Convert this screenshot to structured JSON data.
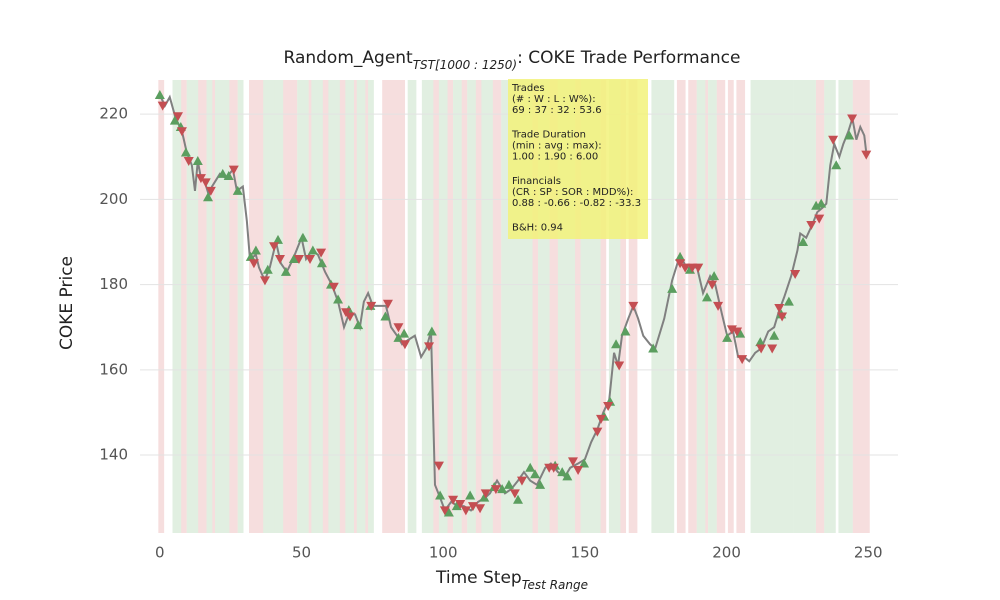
{
  "chart_data": {
    "type": "line",
    "title": {
      "main": "Random_Agent",
      "sub": "TST[1000 : 1250)",
      "rest": ": COKE Trade Performance"
    },
    "xlabel": {
      "main": "Time Step",
      "sub": "Test Range"
    },
    "ylabel": "COKE Price",
    "xlim": [
      -7,
      260.5
    ],
    "ylim": [
      121.7,
      229.9
    ],
    "xticks": [
      0,
      50,
      100,
      150,
      200,
      250
    ],
    "yticks": [
      140,
      160,
      180,
      200,
      220
    ],
    "grid": true,
    "spans": [
      {
        "color": "#f6dede",
        "ranges": [
          [
            0,
            1
          ],
          [
            8,
            9
          ],
          [
            14,
            16
          ],
          [
            18,
            19
          ],
          [
            24,
            27
          ],
          [
            32,
            37
          ],
          [
            40,
            41
          ],
          [
            43,
            48
          ],
          [
            52,
            54
          ],
          [
            57,
            60
          ],
          [
            63,
            66
          ],
          [
            68,
            70
          ],
          [
            72,
            74
          ],
          [
            79,
            86
          ],
          [
            96,
            98
          ],
          [
            101,
            103
          ],
          [
            106,
            108
          ],
          [
            111,
            113
          ],
          [
            117,
            120
          ],
          [
            131,
            133
          ],
          [
            137,
            140
          ],
          [
            146,
            148
          ],
          [
            155,
            157
          ],
          [
            162,
            164
          ],
          [
            166,
            168
          ],
          [
            183,
            185
          ],
          [
            187,
            189
          ],
          [
            192,
            193
          ],
          [
            197,
            199
          ],
          [
            201,
            202
          ],
          [
            204,
            206
          ],
          [
            232,
            234
          ],
          [
            245,
            250
          ]
        ]
      },
      {
        "color": "#e1efe1",
        "ranges": [
          [
            5,
            7
          ],
          [
            10,
            13
          ],
          [
            17,
            18
          ],
          [
            20,
            24
          ],
          [
            28,
            29
          ],
          [
            37,
            40
          ],
          [
            41,
            43
          ],
          [
            49,
            52
          ],
          [
            54,
            57
          ],
          [
            60,
            63
          ],
          [
            66,
            68
          ],
          [
            70,
            72
          ],
          [
            74,
            75
          ],
          [
            88,
            90
          ],
          [
            93,
            96
          ],
          [
            99,
            101
          ],
          [
            104,
            106
          ],
          [
            109,
            111
          ],
          [
            114,
            117
          ],
          [
            121,
            131
          ],
          [
            134,
            137
          ],
          [
            141,
            146
          ],
          [
            149,
            155
          ],
          [
            159,
            162
          ],
          [
            174,
            181
          ],
          [
            190,
            192
          ],
          [
            194,
            196
          ],
          [
            209,
            223
          ],
          [
            224,
            227
          ],
          [
            228,
            231
          ],
          [
            235,
            238
          ],
          [
            240,
            244
          ]
        ]
      }
    ],
    "series": [
      {
        "marker": "none",
        "color": "#808080",
        "x": [
          0,
          1.8,
          3.5,
          5.6,
          7.8,
          9.5,
          11.3,
          12.4,
          13.4,
          14.5,
          15.9,
          17.3,
          18.4,
          21.2,
          23.3,
          25.8,
          27.2,
          29.3,
          30.7,
          31.8,
          33.9,
          35,
          37,
          38.8,
          41,
          42.7,
          44.8,
          47,
          50,
          51.6,
          53.7,
          55.8,
          58.3,
          60.7,
          62.9,
          65,
          66.7,
          68.9,
          70.6,
          72,
          73.5,
          75.2,
          77.7,
          79.8,
          81.6,
          83.7,
          85.5,
          87.6,
          90,
          92.2,
          94,
          95.7,
          97.1,
          98.9,
          100.6,
          102.8,
          105.2,
          107.3,
          109.8,
          112.3,
          114.8,
          116.5,
          119,
          121.8,
          124,
          126.4,
          128.5,
          130.7,
          133.1,
          136,
          138,
          140.5,
          143,
          144.8,
          147.6,
          150,
          152.2,
          154.4,
          156.5,
          158.6,
          160.3,
          161.7,
          163.1,
          165.3,
          167.1,
          168.8,
          170.6,
          173,
          174.8,
          178,
          180.8,
          183.6,
          185.8,
          187.9,
          189.6,
          191.7,
          194.2,
          196,
          198.4,
          200.2,
          202.3,
          204.1,
          206.2,
          208,
          210.1,
          212.2,
          214.7,
          216.8,
          218.6,
          220.3,
          222.8,
          225,
          226,
          228.1,
          230.2,
          232,
          233.8,
          235.2,
          236.6,
          238,
          239.8,
          241.2,
          243,
          244.4,
          245.8,
          247.2,
          248.6,
          249.3
        ],
        "values": [
          224.5,
          222,
          224,
          219,
          216,
          211,
          208,
          202,
          209,
          205,
          204,
          201,
          203,
          206,
          205,
          207,
          202,
          203,
          195,
          186,
          187,
          184,
          181,
          184,
          190,
          185,
          183,
          186,
          191,
          186,
          188,
          187,
          183,
          180,
          176,
          170,
          173,
          173,
          170,
          176,
          178,
          175,
          175,
          175,
          170,
          168,
          166,
          167,
          168,
          163,
          165,
          169,
          133,
          130,
          127,
          129,
          128,
          128,
          127,
          129,
          130,
          131,
          134,
          131,
          132,
          134,
          136,
          134,
          133,
          137,
          138,
          136,
          135,
          137,
          138,
          139,
          143,
          146,
          150,
          153,
          164,
          161,
          168,
          172,
          175,
          172,
          168,
          166,
          165,
          172,
          181,
          187,
          184,
          184,
          184,
          178,
          182,
          180,
          173,
          168,
          169,
          163,
          163,
          162,
          164,
          165,
          169,
          170,
          174,
          177,
          182,
          188,
          192,
          191,
          194,
          197,
          198,
          199,
          208,
          213,
          210,
          213,
          216,
          219,
          214,
          217,
          215,
          211
        ]
      },
      {
        "marker": "triangle-up",
        "color": "#5b9e5f",
        "x": [
          0,
          5.3,
          7.4,
          9.2,
          13.4,
          17,
          22.2,
          24.3,
          27.5,
          32.1,
          33.9,
          38.1,
          41.7,
          44.5,
          47.3,
          50.5,
          54,
          57.2,
          60.4,
          62.9,
          66.7,
          70,
          74.3,
          79.6,
          84.2,
          86.2,
          96,
          98.9,
          102,
          104.8,
          109.5,
          114.5,
          118,
          120.8,
          123.2,
          126.4,
          130.7,
          132.4,
          134.2,
          139.5,
          142,
          143.8,
          149.7,
          156.8,
          158.9,
          161,
          164.3,
          174.1,
          180.8,
          183.6,
          187.1,
          193.1,
          195.6,
          200.2,
          204.8,
          211.9,
          216.8,
          219.3,
          222,
          227,
          231.6,
          233.4,
          238.7,
          243.3
        ],
        "values": [
          224.5,
          218.5,
          217,
          211,
          209,
          200.5,
          206,
          205.5,
          202,
          186.5,
          188,
          183.5,
          190.5,
          183,
          186,
          191,
          188,
          185,
          180,
          176.5,
          174,
          170.5,
          175,
          172.5,
          167.5,
          168.5,
          169,
          130.5,
          126.5,
          128,
          130.5,
          130,
          132.5,
          132,
          133,
          129.5,
          137,
          135.5,
          133,
          137.5,
          136,
          135,
          138,
          149,
          152.5,
          166,
          169,
          165,
          179,
          186.5,
          183.5,
          177,
          182,
          167.5,
          168.5,
          166.5,
          168,
          173,
          176,
          190,
          198.5,
          199,
          208,
          215
        ]
      },
      {
        "marker": "triangle-down",
        "color": "#c44e52",
        "x": [
          1,
          6.4,
          7.8,
          10.2,
          14.5,
          16.2,
          18,
          26.1,
          33.2,
          37.1,
          40.3,
          42.4,
          49.1,
          53,
          56.9,
          61.4,
          65.7,
          67.1,
          74.6,
          80.5,
          84.2,
          86.5,
          95,
          98.5,
          100.6,
          103.5,
          106,
          108,
          110.5,
          113,
          115,
          118.6,
          125.3,
          127.8,
          137.4,
          139,
          145.8,
          147.6,
          154.4,
          155.7,
          158.2,
          162.1,
          167.1,
          183.6,
          185.4,
          187.9,
          190,
          194.9,
          197,
          201.9,
          203.7,
          205.5,
          212.2,
          216.1,
          218.6,
          219.6,
          224.2,
          229.9,
          232.7,
          237.6,
          244.3,
          249.3
        ],
        "values": [
          222,
          219.5,
          216,
          209,
          205,
          204,
          202,
          207,
          185,
          181,
          189,
          186,
          186,
          186,
          187.5,
          179.5,
          173.5,
          172.5,
          175,
          175.5,
          170,
          166,
          165.5,
          137.5,
          127,
          129.5,
          128.5,
          127,
          128,
          127.5,
          131,
          132,
          131,
          134,
          137,
          137,
          138.5,
          136.5,
          145.5,
          148.5,
          151.5,
          161,
          175,
          185,
          184,
          184,
          184,
          180,
          175,
          169.5,
          169,
          162.5,
          165,
          165,
          174.5,
          172.5,
          182.5,
          194,
          195.5,
          214,
          219,
          210.5
        ]
      }
    ],
    "annotation": {
      "color": "#f2f27a",
      "groups": [
        [
          "Trades",
          "(# : W : L : W%):",
          "69 : 37 : 32 : 53.6"
        ],
        [
          "Trade Duration",
          "(min : avg : max):",
          "1.00 : 1.90 : 6.00"
        ],
        [
          "Financials",
          "(CR : SP : SOR : MDD%):",
          "0.88 : -0.66 : -0.82 : -33.3"
        ],
        [
          "B&H: 0.94"
        ]
      ]
    }
  }
}
